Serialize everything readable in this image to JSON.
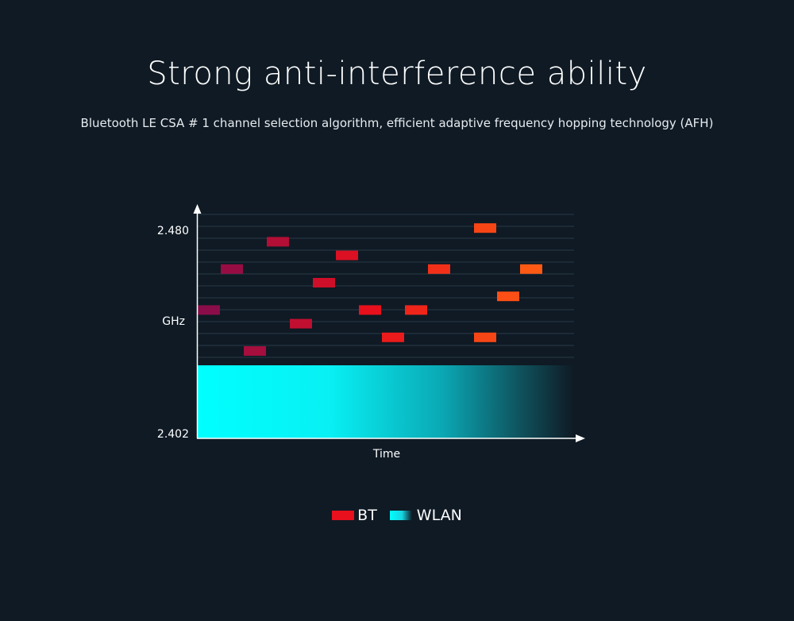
{
  "header": {
    "title": "Strong anti-interference ability",
    "subtitle": "Bluetooth LE CSA # 1 channel selection algorithm, efficient adaptive frequency hopping technology (AFH)"
  },
  "diagram": {
    "y_unit_label": "GHz",
    "y_top_label": "2.480",
    "y_bottom_label": "2.402",
    "x_label": "Time",
    "grid_channels": 12,
    "bt_color_start": "#8a0d4a",
    "bt_color_mid": "#e8101c",
    "bt_color_end": "#ff5a14",
    "wlan_color": "#00ffff",
    "bt_hops": [
      {
        "t": 0,
        "channel": 3
      },
      {
        "t": 1,
        "channel": 6
      },
      {
        "t": 2,
        "channel": 0
      },
      {
        "t": 3,
        "channel": 8
      },
      {
        "t": 4,
        "channel": 2
      },
      {
        "t": 5,
        "channel": 5
      },
      {
        "t": 6,
        "channel": 7
      },
      {
        "t": 7,
        "channel": 3
      },
      {
        "t": 8,
        "channel": 1
      },
      {
        "t": 9,
        "channel": 3
      },
      {
        "t": 10,
        "channel": 6
      },
      {
        "t": 12,
        "channel": 9
      },
      {
        "t": 12,
        "channel": 1
      },
      {
        "t": 13,
        "channel": 4
      },
      {
        "t": 14,
        "channel": 6
      }
    ]
  },
  "legend": {
    "bt_label": "BT",
    "wlan_label": "WLAN"
  }
}
